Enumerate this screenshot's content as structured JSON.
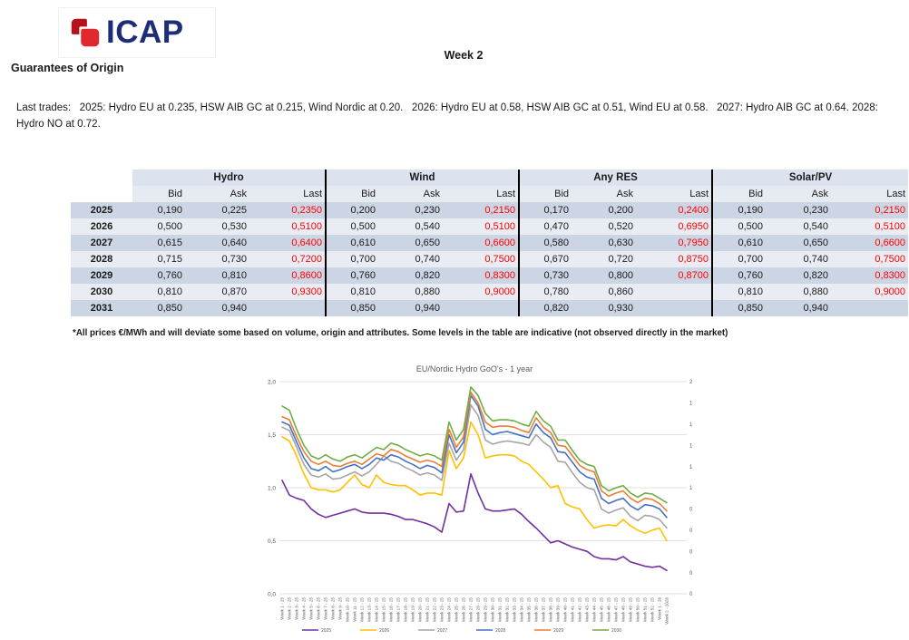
{
  "header": {
    "logo_text": "ICAP",
    "week_title": "Week 2",
    "page_title": "Guarantees of Origin",
    "last_trades": "Last trades:   2025: Hydro EU at 0.235, HSW AIB GC at 0.215, Wind Nordic at 0.20.   2026: Hydro EU at 0.58, HSW AIB GC at 0.51, Wind EU at 0.58.   2027: Hydro AIB GC at 0.64. 2028: Hydro NO at 0.72."
  },
  "price_table": {
    "groups": [
      "Hydro",
      "Wind",
      "Any RES",
      "Solar/PV"
    ],
    "sub_headers": [
      "Bid",
      "Ask",
      "Last"
    ],
    "last_color": "#FF0000",
    "rows": [
      {
        "year": "2025",
        "cells": [
          [
            "0,190",
            "0,225",
            "0,2350"
          ],
          [
            "0,200",
            "0,230",
            "0,2150"
          ],
          [
            "0,170",
            "0,200",
            "0,2400"
          ],
          [
            "0,190",
            "0,230",
            "0,2150"
          ]
        ]
      },
      {
        "year": "2026",
        "cells": [
          [
            "0,500",
            "0,530",
            "0,5100"
          ],
          [
            "0,500",
            "0,540",
            "0,5100"
          ],
          [
            "0,470",
            "0,520",
            "0,6950"
          ],
          [
            "0,500",
            "0,540",
            "0,5100"
          ]
        ]
      },
      {
        "year": "2027",
        "cells": [
          [
            "0,615",
            "0,640",
            "0,6400"
          ],
          [
            "0,610",
            "0,650",
            "0,6600"
          ],
          [
            "0,580",
            "0,630",
            "0,7950"
          ],
          [
            "0,610",
            "0,650",
            "0,6600"
          ]
        ]
      },
      {
        "year": "2028",
        "cells": [
          [
            "0,715",
            "0,730",
            "0,7200"
          ],
          [
            "0,700",
            "0,740",
            "0,7500"
          ],
          [
            "0,670",
            "0,720",
            "0,8750"
          ],
          [
            "0,700",
            "0,740",
            "0,7500"
          ]
        ]
      },
      {
        "year": "2029",
        "cells": [
          [
            "0,760",
            "0,810",
            "0,8600"
          ],
          [
            "0,760",
            "0,820",
            "0,8300"
          ],
          [
            "0,730",
            "0,800",
            "0,8700"
          ],
          [
            "0,760",
            "0,820",
            "0,8300"
          ]
        ]
      },
      {
        "year": "2030",
        "cells": [
          [
            "0,810",
            "0,870",
            "0,9300"
          ],
          [
            "0,810",
            "0,880",
            "0,9000"
          ],
          [
            "0,780",
            "0,860",
            ""
          ],
          [
            "0,810",
            "0,880",
            "0,9000"
          ]
        ]
      },
      {
        "year": "2031",
        "cells": [
          [
            "0,850",
            "0,940",
            ""
          ],
          [
            "0,850",
            "0,940",
            ""
          ],
          [
            "0,820",
            "0,930",
            ""
          ],
          [
            "0,850",
            "0,940",
            ""
          ]
        ]
      }
    ],
    "footnote": "*All prices €/MWh and will deviate some based on volume, origin and attributes. Some levels in the table are indicative (not observed directly in the market)"
  },
  "chart_data": {
    "type": "line",
    "title": "EU/Nordic Hydro GoO's - 1 year",
    "ylim": [
      0,
      2
    ],
    "grid": true,
    "legend_position": "bottom",
    "y_axis_left_ticks": [
      "2,0",
      "1,5",
      "1,0",
      "0,5",
      "0,0"
    ],
    "y_axis_right_ticks": [
      "2,0",
      "1,8",
      "1,6",
      "1,4",
      "1,2",
      "1,0",
      "0,8",
      "0,6",
      "0,4",
      "0,2",
      "0,0"
    ],
    "x_labels": [
      "Week 1 - 25",
      "Week 2 - 25",
      "Week 3 - 25",
      "Week 4 - 25",
      "Week 5 - 25",
      "Week 6 - 25",
      "Week 7 - 25",
      "Week 8 - 25",
      "Week 9 - 25",
      "Week 10 - 25",
      "Week 11 - 25",
      "Week 12 - 25",
      "Week 13 - 25",
      "Week 14 - 25",
      "Week 15 - 25",
      "Week 16 - 25",
      "Week 17 - 25",
      "Week 18 - 25",
      "Week 19 - 25",
      "Week 20 - 25",
      "Week 21 - 25",
      "Week 22 - 25",
      "Week 23 - 25",
      "Week 24 - 25",
      "Week 25 - 25",
      "Week 26 - 25",
      "Week 27 - 25",
      "Week 28 - 25",
      "Week 29 - 25",
      "Week 30 - 25",
      "Week 31 - 25",
      "Week 32 - 25",
      "Week 33 - 25",
      "Week 34 - 25",
      "Week 35 - 25",
      "Week 36 - 25",
      "Week 37 - 25",
      "Week 38 - 25",
      "Week 39 - 25",
      "Week 40 - 25",
      "Week 41 - 25",
      "Week 42 - 25",
      "Week 43 - 25",
      "Week 44 - 25",
      "Week 45 - 25",
      "Week 46 - 25",
      "Week 47 - 25",
      "Week 48 - 25",
      "Week 49 - 25",
      "Week 50 - 25",
      "Week 51 - 25",
      "Week 52 - 25",
      "Week 1 - 26",
      "Week 2 - 2026"
    ],
    "series": [
      {
        "name": "2025",
        "color": "#7030A0",
        "values": [
          1.07,
          0.93,
          0.9,
          0.88,
          0.8,
          0.75,
          0.72,
          0.74,
          0.76,
          0.78,
          0.8,
          0.77,
          0.76,
          0.76,
          0.76,
          0.75,
          0.73,
          0.7,
          0.7,
          0.68,
          0.66,
          0.63,
          0.58,
          0.85,
          0.77,
          0.78,
          1.13,
          0.95,
          0.8,
          0.78,
          0.78,
          0.79,
          0.8,
          0.75,
          0.68,
          0.62,
          0.55,
          0.48,
          0.5,
          0.47,
          0.44,
          0.42,
          0.4,
          0.35,
          0.33,
          0.33,
          0.32,
          0.35,
          0.3,
          0.28,
          0.26,
          0.25,
          0.26,
          0.22
        ]
      },
      {
        "name": "2026",
        "color": "#FFC000",
        "values": [
          1.48,
          1.44,
          1.3,
          1.13,
          1.0,
          0.98,
          0.98,
          0.96,
          0.98,
          1.05,
          1.12,
          1.03,
          1.0,
          1.12,
          1.05,
          1.03,
          1.02,
          1.02,
          0.98,
          0.93,
          0.95,
          0.95,
          0.93,
          1.35,
          1.18,
          1.28,
          1.62,
          1.5,
          1.28,
          1.3,
          1.31,
          1.31,
          1.3,
          1.25,
          1.22,
          1.15,
          1.08,
          1.0,
          1.02,
          0.85,
          0.82,
          0.8,
          0.7,
          0.62,
          0.64,
          0.65,
          0.64,
          0.7,
          0.64,
          0.6,
          0.57,
          0.6,
          0.62,
          0.5
        ]
      },
      {
        "name": "2027",
        "color": "#A6A6A6",
        "values": [
          1.57,
          1.54,
          1.38,
          1.22,
          1.12,
          1.1,
          1.13,
          1.08,
          1.09,
          1.12,
          1.15,
          1.11,
          1.15,
          1.22,
          1.3,
          1.25,
          1.23,
          1.19,
          1.16,
          1.12,
          1.14,
          1.12,
          1.07,
          1.42,
          1.26,
          1.36,
          1.78,
          1.68,
          1.45,
          1.41,
          1.43,
          1.44,
          1.43,
          1.42,
          1.4,
          1.5,
          1.43,
          1.38,
          1.25,
          1.24,
          1.14,
          1.05,
          1.0,
          0.98,
          0.8,
          0.76,
          0.79,
          0.81,
          0.73,
          0.69,
          0.74,
          0.73,
          0.7,
          0.62
        ]
      },
      {
        "name": "2028",
        "color": "#4472C4",
        "values": [
          1.62,
          1.59,
          1.43,
          1.28,
          1.18,
          1.16,
          1.2,
          1.15,
          1.17,
          1.2,
          1.22,
          1.18,
          1.22,
          1.28,
          1.26,
          1.31,
          1.29,
          1.25,
          1.22,
          1.18,
          1.21,
          1.19,
          1.14,
          1.5,
          1.33,
          1.43,
          1.87,
          1.77,
          1.55,
          1.5,
          1.52,
          1.53,
          1.51,
          1.49,
          1.47,
          1.6,
          1.52,
          1.47,
          1.34,
          1.33,
          1.24,
          1.15,
          1.1,
          1.08,
          0.9,
          0.85,
          0.88,
          0.9,
          0.83,
          0.79,
          0.84,
          0.83,
          0.8,
          0.72
        ]
      },
      {
        "name": "2029",
        "color": "#ED7D31",
        "values": [
          1.67,
          1.64,
          1.48,
          1.34,
          1.25,
          1.22,
          1.25,
          1.21,
          1.2,
          1.23,
          1.25,
          1.22,
          1.27,
          1.32,
          1.3,
          1.36,
          1.34,
          1.3,
          1.27,
          1.24,
          1.26,
          1.24,
          1.2,
          1.55,
          1.38,
          1.48,
          1.9,
          1.8,
          1.62,
          1.57,
          1.58,
          1.58,
          1.57,
          1.54,
          1.52,
          1.66,
          1.57,
          1.52,
          1.4,
          1.39,
          1.3,
          1.21,
          1.17,
          1.15,
          0.97,
          0.92,
          0.95,
          0.97,
          0.9,
          0.86,
          0.9,
          0.89,
          0.85,
          0.78
        ]
      },
      {
        "name": "2030",
        "color": "#70AD47",
        "values": [
          1.77,
          1.73,
          1.55,
          1.4,
          1.3,
          1.27,
          1.31,
          1.27,
          1.25,
          1.29,
          1.31,
          1.28,
          1.33,
          1.38,
          1.36,
          1.42,
          1.4,
          1.36,
          1.33,
          1.3,
          1.32,
          1.3,
          1.26,
          1.62,
          1.45,
          1.55,
          1.95,
          1.87,
          1.7,
          1.63,
          1.64,
          1.64,
          1.63,
          1.6,
          1.58,
          1.72,
          1.63,
          1.58,
          1.45,
          1.45,
          1.35,
          1.26,
          1.22,
          1.2,
          1.02,
          0.97,
          1.0,
          1.02,
          0.95,
          0.91,
          0.95,
          0.94,
          0.9,
          0.86
        ]
      }
    ]
  }
}
